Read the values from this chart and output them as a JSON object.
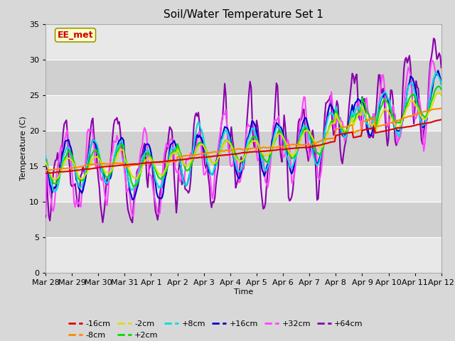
{
  "title": "Soil/Water Temperature Set 1",
  "xlabel": "Time",
  "ylabel": "Temperature (C)",
  "ylim": [
    0,
    35
  ],
  "background_color": "#d8d8d8",
  "plot_bg_color": "#d8d8d8",
  "annotation_text": "EE_met",
  "tick_labels": [
    "Mar 28",
    "Mar 29",
    "Mar 30",
    "Mar 31",
    "Apr 1",
    "Apr 2",
    "Apr 3",
    "Apr 4",
    "Apr 5",
    "Apr 6",
    "Apr 7",
    "Apr 8",
    "Apr 9",
    "Apr 10",
    "Apr 11",
    "Apr 12"
  ],
  "tick_positions": [
    0,
    24,
    48,
    72,
    96,
    120,
    144,
    168,
    192,
    216,
    240,
    264,
    288,
    312,
    336,
    360
  ],
  "series": {
    "m16cm": {
      "label": "-16cm",
      "color": "#dd0000",
      "lw": 1.5
    },
    "m8cm": {
      "label": "-8cm",
      "color": "#ff8800",
      "lw": 1.5
    },
    "m2cm": {
      "label": "-2cm",
      "color": "#dddd00",
      "lw": 1.5
    },
    "p2cm": {
      "label": "+2cm",
      "color": "#00dd00",
      "lw": 1.5
    },
    "p8cm": {
      "label": "+8cm",
      "color": "#00dddd",
      "lw": 1.5
    },
    "p16cm": {
      "label": "+16cm",
      "color": "#0000cc",
      "lw": 1.5
    },
    "p32cm": {
      "label": "+32cm",
      "color": "#ff44ff",
      "lw": 1.5
    },
    "p64cm": {
      "label": "+64cm",
      "color": "#8800aa",
      "lw": 1.5
    }
  }
}
